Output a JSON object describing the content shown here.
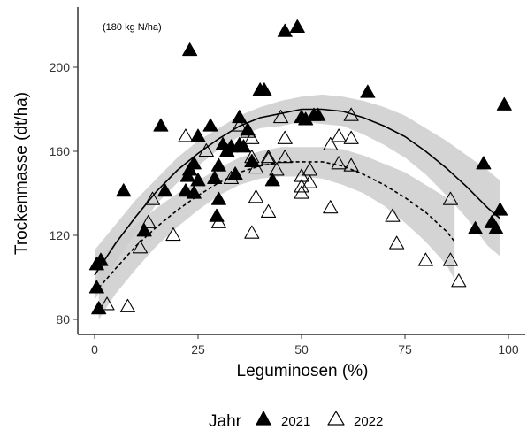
{
  "chart_data": {
    "type": "scatter",
    "annotation": "(180 kg N/ha)",
    "xlabel": "Leguminosen (%)",
    "ylabel": "Trockenmasse (dt/ha)",
    "xlim": [
      -4,
      102
    ],
    "ylim": [
      78,
      225
    ],
    "xticks": [
      0,
      25,
      50,
      75,
      100
    ],
    "yticks": [
      80,
      120,
      160,
      200
    ],
    "grid": false,
    "legend": {
      "title": "Jahr",
      "position": "bottom",
      "entries": [
        "2021",
        "2022"
      ]
    },
    "series": [
      {
        "name": "2021",
        "marker": "filled-triangle",
        "color": "#000000",
        "points": [
          [
            0.5,
            95
          ],
          [
            0.5,
            106
          ],
          [
            1,
            85
          ],
          [
            1.5,
            108
          ],
          [
            7,
            141
          ],
          [
            12,
            122
          ],
          [
            16,
            172
          ],
          [
            17,
            141
          ],
          [
            23,
            208
          ],
          [
            22,
            141
          ],
          [
            22.5,
            148
          ],
          [
            23,
            151
          ],
          [
            24,
            140
          ],
          [
            24,
            154
          ],
          [
            25,
            167
          ],
          [
            25,
            146
          ],
          [
            28,
            172
          ],
          [
            29,
            147
          ],
          [
            29.5,
            129
          ],
          [
            30,
            137
          ],
          [
            30,
            153
          ],
          [
            31,
            163
          ],
          [
            32,
            160
          ],
          [
            33,
            162
          ],
          [
            34,
            149
          ],
          [
            35,
            163
          ],
          [
            35,
            176
          ],
          [
            36,
            162
          ],
          [
            37,
            170
          ],
          [
            38,
            155
          ],
          [
            40,
            189
          ],
          [
            41,
            189
          ],
          [
            43,
            146
          ],
          [
            46,
            217
          ],
          [
            49,
            219
          ],
          [
            50,
            176
          ],
          [
            51,
            175
          ],
          [
            53,
            177
          ],
          [
            54,
            177
          ],
          [
            66,
            188
          ],
          [
            94,
            154
          ],
          [
            92,
            123
          ],
          [
            96,
            126
          ],
          [
            97,
            123
          ],
          [
            98,
            132
          ],
          [
            99,
            182
          ]
        ],
        "fit": {
          "label": "2021 quadratic fit",
          "line": [
            [
              0,
              101
            ],
            [
              5,
              116
            ],
            [
              10,
              129
            ],
            [
              15,
              141
            ],
            [
              20,
              151
            ],
            [
              25,
              159
            ],
            [
              30,
              166
            ],
            [
              35,
              172
            ],
            [
              40,
              176
            ],
            [
              45,
              178
            ],
            [
              50,
              180
            ],
            [
              55,
              180
            ],
            [
              60,
              179
            ],
            [
              65,
              176
            ],
            [
              70,
              172
            ],
            [
              75,
              167
            ],
            [
              80,
              160
            ],
            [
              85,
              152
            ],
            [
              90,
              143
            ],
            [
              95,
              133
            ],
            [
              98,
              128
            ]
          ],
          "ci_upper": [
            [
              0,
              113
            ],
            [
              5,
              125
            ],
            [
              10,
              137
            ],
            [
              15,
              147
            ],
            [
              20,
              157
            ],
            [
              25,
              165
            ],
            [
              30,
              171
            ],
            [
              35,
              177
            ],
            [
              40,
              181
            ],
            [
              45,
              184
            ],
            [
              50,
              186
            ],
            [
              55,
              187
            ],
            [
              60,
              186
            ],
            [
              65,
              184
            ],
            [
              70,
              181
            ],
            [
              75,
              177
            ],
            [
              80,
              171
            ],
            [
              85,
              165
            ],
            [
              90,
              158
            ],
            [
              95,
              151
            ],
            [
              98,
              146
            ]
          ],
          "ci_lower": [
            [
              0,
              89
            ],
            [
              5,
              107
            ],
            [
              10,
              121
            ],
            [
              15,
              135
            ],
            [
              20,
              145
            ],
            [
              25,
              153
            ],
            [
              30,
              161
            ],
            [
              35,
              167
            ],
            [
              40,
              171
            ],
            [
              45,
              172
            ],
            [
              50,
              174
            ],
            [
              55,
              173
            ],
            [
              60,
              172
            ],
            [
              65,
              168
            ],
            [
              70,
              163
            ],
            [
              75,
              157
            ],
            [
              80,
              149
            ],
            [
              85,
              139
            ],
            [
              90,
              128
            ],
            [
              95,
              115
            ],
            [
              98,
              110
            ]
          ]
        }
      },
      {
        "name": "2022",
        "marker": "open-triangle",
        "color": "#000000",
        "points": [
          [
            3,
            87
          ],
          [
            8,
            86
          ],
          [
            11,
            114
          ],
          [
            13,
            126
          ],
          [
            14,
            137
          ],
          [
            19,
            120
          ],
          [
            22,
            167
          ],
          [
            27,
            160
          ],
          [
            30,
            126
          ],
          [
            33,
            147
          ],
          [
            35,
            172
          ],
          [
            37,
            169
          ],
          [
            38,
            157
          ],
          [
            38,
            166
          ],
          [
            39,
            138
          ],
          [
            39,
            152
          ],
          [
            38,
            121
          ],
          [
            42,
            157
          ],
          [
            42,
            156
          ],
          [
            42,
            131
          ],
          [
            44,
            151
          ],
          [
            45,
            176
          ],
          [
            46,
            166
          ],
          [
            46,
            157
          ],
          [
            50,
            148
          ],
          [
            50,
            140
          ],
          [
            50,
            143
          ],
          [
            52,
            145
          ],
          [
            52,
            151
          ],
          [
            57,
            163
          ],
          [
            57,
            133
          ],
          [
            59,
            167
          ],
          [
            59,
            154
          ],
          [
            62,
            153
          ],
          [
            62,
            177
          ],
          [
            62,
            166
          ],
          [
            72,
            129
          ],
          [
            73,
            116
          ],
          [
            80,
            108
          ],
          [
            86,
            137
          ],
          [
            86,
            108
          ],
          [
            88,
            98
          ]
        ],
        "fit": {
          "label": "2022 quadratic fit",
          "line": [
            [
              1,
              95
            ],
            [
              5,
              104
            ],
            [
              10,
              115
            ],
            [
              15,
              124
            ],
            [
              20,
              132
            ],
            [
              25,
              139
            ],
            [
              30,
              145
            ],
            [
              35,
              150
            ],
            [
              40,
              153
            ],
            [
              45,
              155
            ],
            [
              50,
              155
            ],
            [
              55,
              155
            ],
            [
              60,
              153
            ],
            [
              65,
              149
            ],
            [
              70,
              144
            ],
            [
              75,
              138
            ],
            [
              80,
              131
            ],
            [
              85,
              122
            ],
            [
              87,
              117
            ]
          ],
          "ci_upper": [
            [
              1,
              110
            ],
            [
              5,
              116
            ],
            [
              10,
              125
            ],
            [
              15,
              133
            ],
            [
              20,
              140
            ],
            [
              25,
              146
            ],
            [
              30,
              152
            ],
            [
              35,
              157
            ],
            [
              40,
              160
            ],
            [
              45,
              162
            ],
            [
              50,
              162
            ],
            [
              55,
              162
            ],
            [
              60,
              161
            ],
            [
              65,
              158
            ],
            [
              70,
              154
            ],
            [
              75,
              150
            ],
            [
              80,
              144
            ],
            [
              85,
              138
            ],
            [
              87,
              135
            ]
          ],
          "ci_lower": [
            [
              1,
              80
            ],
            [
              5,
              92
            ],
            [
              10,
              104
            ],
            [
              15,
              115
            ],
            [
              20,
              124
            ],
            [
              25,
              132
            ],
            [
              30,
              139
            ],
            [
              35,
              144
            ],
            [
              40,
              147
            ],
            [
              45,
              148
            ],
            [
              50,
              148
            ],
            [
              55,
              147
            ],
            [
              60,
              144
            ],
            [
              65,
              140
            ],
            [
              70,
              134
            ],
            [
              75,
              126
            ],
            [
              80,
              117
            ],
            [
              85,
              106
            ],
            [
              87,
              99
            ]
          ]
        }
      }
    ]
  }
}
